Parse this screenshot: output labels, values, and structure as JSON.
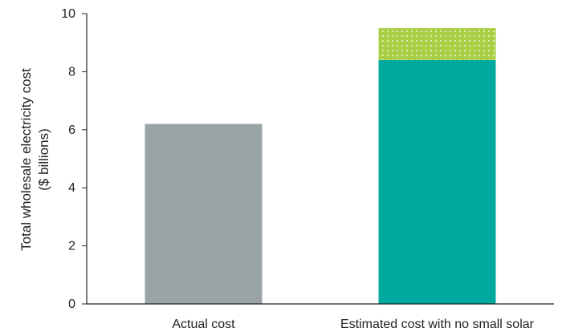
{
  "chart_data": {
    "type": "bar",
    "stacked": true,
    "categories": [
      "Actual cost",
      "Estimated cost with no small solar"
    ],
    "series": [
      {
        "values": [
          6.2,
          8.4
        ],
        "colors": [
          "#9aa4a6",
          "#00a99d"
        ]
      },
      {
        "values": [
          0,
          1.1
        ],
        "colors": [
          "#a8cf45",
          "#a8cf45"
        ],
        "pattern": "dotted"
      }
    ],
    "ylabel_line1": "Total wholesale electricity cost",
    "ylabel_line2": "($ billions)",
    "ylim": [
      0,
      10
    ],
    "yticks": [
      "0",
      "2",
      "4",
      "6",
      "8",
      "10"
    ],
    "grid": false
  }
}
